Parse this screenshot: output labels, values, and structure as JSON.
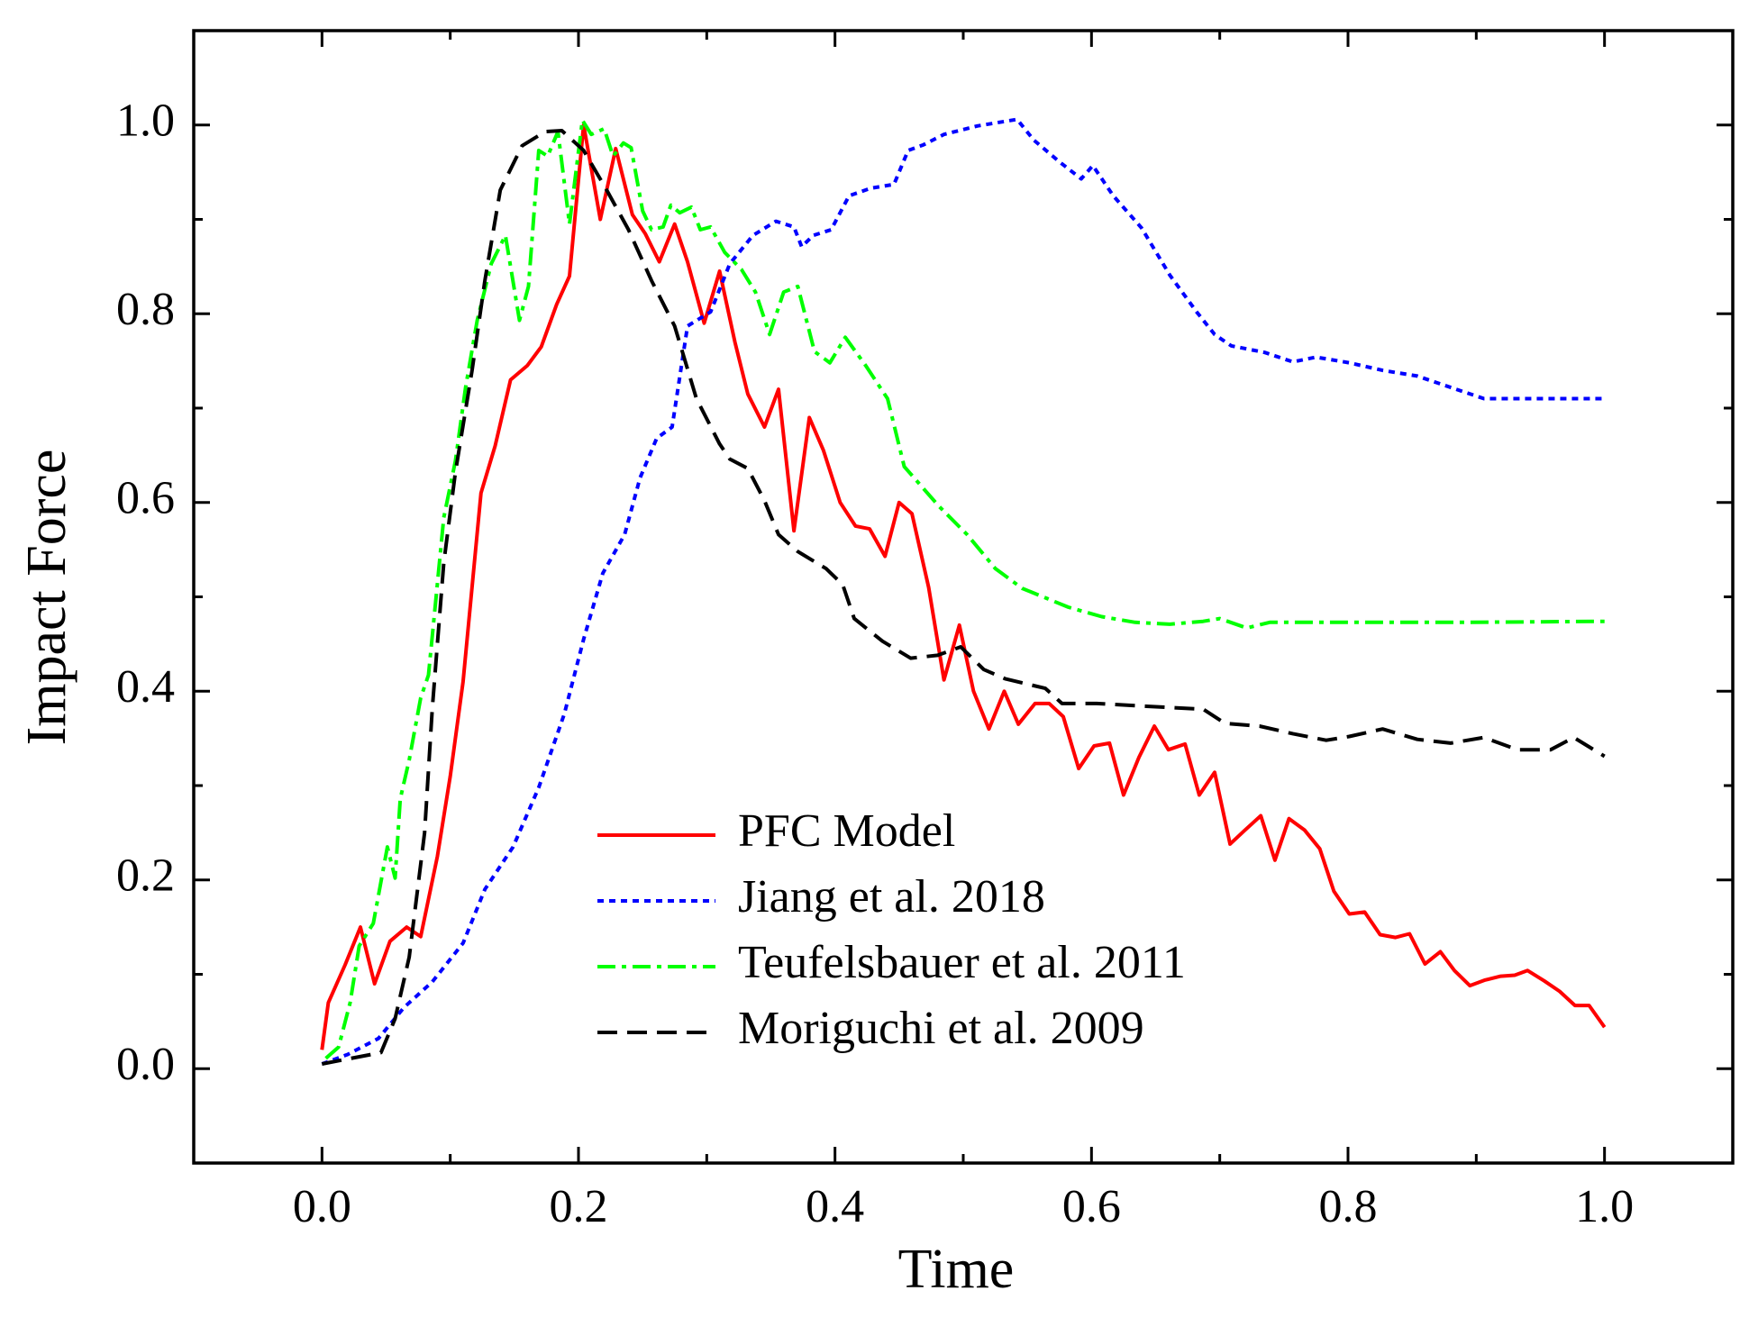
{
  "chart_data": {
    "type": "line",
    "xlabel": "Time",
    "ylabel": "Impact Force",
    "xlim": [
      -0.1,
      1.1
    ],
    "ylim": [
      -0.1,
      1.1
    ],
    "xticks": [
      {
        "value": 0,
        "label": "0.0"
      },
      0.2,
      0.4,
      0.6,
      0.8,
      {
        "value": 1,
        "label": "1.0"
      }
    ],
    "yticks": [
      {
        "value": 0,
        "label": "0.0"
      },
      0.2,
      0.4,
      0.6,
      0.8,
      {
        "value": 1,
        "label": "1.0"
      }
    ],
    "legend": "lower center",
    "series": [
      {
        "name": "PFC Model",
        "color": "#ff0000",
        "style": "solid",
        "x": [
          0,
          0.005,
          0.018,
          0.03,
          0.041,
          0.053,
          0.066,
          0.077,
          0.09,
          0.1,
          0.11,
          0.124,
          0.135,
          0.147,
          0.16,
          0.171,
          0.183,
          0.193,
          0.204,
          0.217,
          0.229,
          0.242,
          0.252,
          0.263,
          0.275,
          0.285,
          0.298,
          0.31,
          0.322,
          0.332,
          0.345,
          0.356,
          0.368,
          0.38,
          0.391,
          0.404,
          0.416,
          0.427,
          0.439,
          0.45,
          0.46,
          0.473,
          0.485,
          0.497,
          0.508,
          0.52,
          0.532,
          0.543,
          0.556,
          0.567,
          0.578,
          0.59,
          0.602,
          0.614,
          0.625,
          0.637,
          0.649,
          0.66,
          0.673,
          0.684,
          0.696,
          0.708,
          0.719,
          0.732,
          0.743,
          0.754,
          0.766,
          0.778,
          0.789,
          0.801,
          0.813,
          0.825,
          0.837,
          0.848,
          0.86,
          0.872,
          0.883,
          0.895,
          0.907,
          0.919,
          0.93,
          0.94,
          0.953,
          0.965,
          0.977,
          0.988,
          1.0
        ],
        "values": [
          0.02,
          0.07,
          0.11,
          0.15,
          0.09,
          0.135,
          0.15,
          0.14,
          0.225,
          0.31,
          0.41,
          0.61,
          0.66,
          0.73,
          0.745,
          0.765,
          0.81,
          0.84,
          1.0,
          0.9,
          0.975,
          0.905,
          0.885,
          0.855,
          0.895,
          0.855,
          0.79,
          0.845,
          0.77,
          0.715,
          0.68,
          0.72,
          0.57,
          0.69,
          0.655,
          0.6,
          0.575,
          0.572,
          0.543,
          0.6,
          0.588,
          0.51,
          0.412,
          0.47,
          0.4,
          0.36,
          0.4,
          0.365,
          0.387,
          0.387,
          0.373,
          0.318,
          0.342,
          0.345,
          0.29,
          0.33,
          0.363,
          0.338,
          0.344,
          0.29,
          0.314,
          0.238,
          0.252,
          0.268,
          0.221,
          0.265,
          0.253,
          0.233,
          0.188,
          0.164,
          0.166,
          0.142,
          0.139,
          0.143,
          0.111,
          0.124,
          0.104,
          0.088,
          0.094,
          0.098,
          0.099,
          0.104,
          0.093,
          0.082,
          0.067,
          0.067,
          0.044
        ]
      },
      {
        "name": "Jiang et al. 2018",
        "color": "#0000ff",
        "style": "dotted",
        "x": [
          0,
          0.02,
          0.044,
          0.064,
          0.086,
          0.11,
          0.127,
          0.149,
          0.169,
          0.189,
          0.204,
          0.219,
          0.236,
          0.248,
          0.261,
          0.273,
          0.285,
          0.303,
          0.318,
          0.336,
          0.354,
          0.368,
          0.374,
          0.383,
          0.397,
          0.411,
          0.428,
          0.446,
          0.457,
          0.469,
          0.485,
          0.511,
          0.542,
          0.555,
          0.575,
          0.592,
          0.601,
          0.617,
          0.639,
          0.661,
          0.682,
          0.696,
          0.709,
          0.735,
          0.757,
          0.775,
          0.801,
          0.827,
          0.854,
          0.88,
          0.906,
          0.941,
          1.0
        ],
        "values": [
          0.005,
          0.015,
          0.032,
          0.065,
          0.092,
          0.133,
          0.19,
          0.235,
          0.298,
          0.376,
          0.455,
          0.525,
          0.566,
          0.626,
          0.668,
          0.68,
          0.787,
          0.802,
          0.853,
          0.883,
          0.898,
          0.892,
          0.871,
          0.883,
          0.889,
          0.925,
          0.933,
          0.937,
          0.973,
          0.979,
          0.99,
          0.999,
          1.006,
          0.984,
          0.961,
          0.943,
          0.957,
          0.925,
          0.891,
          0.841,
          0.802,
          0.778,
          0.766,
          0.759,
          0.749,
          0.754,
          0.748,
          0.74,
          0.734,
          0.722,
          0.71,
          0.71,
          0.71
        ]
      },
      {
        "name": "Teufelsbauer et al. 2011",
        "color": "#00ff00",
        "style": "dashdot",
        "x": [
          0.003,
          0.013,
          0.022,
          0.029,
          0.04,
          0.051,
          0.057,
          0.061,
          0.068,
          0.077,
          0.083,
          0.089,
          0.095,
          0.104,
          0.112,
          0.121,
          0.132,
          0.143,
          0.154,
          0.161,
          0.169,
          0.176,
          0.184,
          0.193,
          0.203,
          0.21,
          0.22,
          0.227,
          0.235,
          0.241,
          0.25,
          0.257,
          0.266,
          0.272,
          0.279,
          0.288,
          0.295,
          0.303,
          0.314,
          0.327,
          0.338,
          0.349,
          0.36,
          0.371,
          0.384,
          0.396,
          0.408,
          0.424,
          0.441,
          0.454,
          0.481,
          0.503,
          0.525,
          0.546,
          0.582,
          0.608,
          0.634,
          0.661,
          0.687,
          0.7,
          0.721,
          0.739,
          0.8,
          0.888,
          1.0
        ],
        "values": [
          0.011,
          0.023,
          0.07,
          0.13,
          0.154,
          0.235,
          0.202,
          0.286,
          0.327,
          0.393,
          0.417,
          0.5,
          0.584,
          0.644,
          0.722,
          0.793,
          0.853,
          0.883,
          0.793,
          0.829,
          0.973,
          0.967,
          0.993,
          0.895,
          1.005,
          0.99,
          0.996,
          0.967,
          0.981,
          0.976,
          0.909,
          0.889,
          0.892,
          0.915,
          0.907,
          0.913,
          0.889,
          0.892,
          0.865,
          0.847,
          0.823,
          0.778,
          0.823,
          0.829,
          0.76,
          0.748,
          0.775,
          0.745,
          0.71,
          0.638,
          0.596,
          0.566,
          0.53,
          0.509,
          0.489,
          0.479,
          0.473,
          0.471,
          0.474,
          0.477,
          0.467,
          0.473,
          0.473,
          0.473,
          0.474
        ]
      },
      {
        "name": "Moriguchi et al. 2009",
        "color": "#000000",
        "style": "dashed",
        "x": [
          0,
          0.046,
          0.057,
          0.068,
          0.08,
          0.086,
          0.095,
          0.104,
          0.117,
          0.127,
          0.139,
          0.156,
          0.174,
          0.187,
          0.204,
          0.222,
          0.239,
          0.257,
          0.275,
          0.292,
          0.31,
          0.318,
          0.332,
          0.345,
          0.356,
          0.371,
          0.393,
          0.406,
          0.415,
          0.437,
          0.459,
          0.48,
          0.498,
          0.516,
          0.533,
          0.564,
          0.577,
          0.604,
          0.643,
          0.687,
          0.704,
          0.731,
          0.757,
          0.783,
          0.801,
          0.827,
          0.854,
          0.88,
          0.906,
          0.932,
          0.958,
          0.976,
          1.0
        ],
        "values": [
          0.005,
          0.017,
          0.053,
          0.118,
          0.25,
          0.381,
          0.536,
          0.632,
          0.74,
          0.835,
          0.931,
          0.978,
          0.993,
          0.994,
          0.973,
          0.931,
          0.889,
          0.835,
          0.787,
          0.71,
          0.662,
          0.646,
          0.636,
          0.602,
          0.566,
          0.548,
          0.53,
          0.513,
          0.477,
          0.453,
          0.435,
          0.438,
          0.447,
          0.423,
          0.413,
          0.403,
          0.387,
          0.387,
          0.384,
          0.381,
          0.366,
          0.363,
          0.355,
          0.348,
          0.352,
          0.36,
          0.349,
          0.345,
          0.351,
          0.338,
          0.338,
          0.351,
          0.331
        ]
      }
    ]
  }
}
